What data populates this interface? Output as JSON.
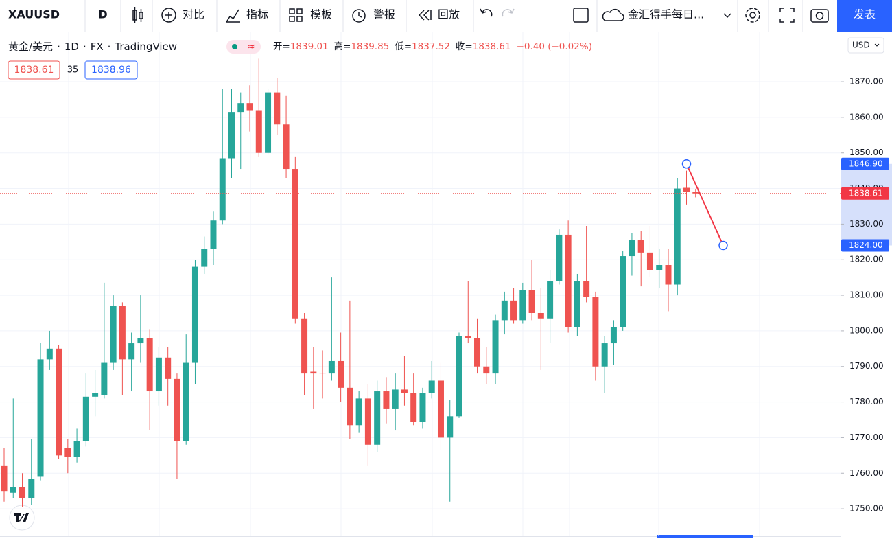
{
  "toolbar": {
    "symbol": "XAUUSD",
    "interval": "D",
    "buttons": [
      "对比",
      "指标",
      "模板",
      "警报",
      "回放"
    ],
    "layout_name": "金汇得手每日...",
    "publish": "发表"
  },
  "legend": {
    "name": "黄金/美元",
    "interval": "1D",
    "exchange": "FX",
    "source": "TradingView",
    "ohlc": [
      {
        "label": "开=",
        "value": 1839.01
      },
      {
        "label": "高=",
        "value": 1839.85
      },
      {
        "label": "低=",
        "value": 1837.52
      },
      {
        "label": "收=",
        "value": 1838.61
      }
    ],
    "change": "−0.40 (−0.02%)",
    "bid": 1838.61,
    "spread": 35,
    "ask": 1838.96
  },
  "currency": "USD",
  "chart_data": {
    "type": "candlestick",
    "open": [
      1762,
      1754.5,
      1756,
      1753,
      1759,
      1792,
      1795,
      1767,
      1764.5,
      1769,
      1781.5,
      1782,
      1791,
      1807,
      1792,
      1796.5,
      1798,
      1783,
      1792.5,
      1786.5,
      1769,
      1791,
      1818,
      1823,
      1831,
      1848.5,
      1861.5,
      1864,
      1862,
      1850,
      1867,
      1858,
      1845.5,
      1803.5,
      1788.5,
      1788.2,
      1788,
      1791.5,
      1784,
      1773.5,
      1781,
      1768,
      1783,
      1778,
      1783.5,
      1782.5,
      1774.5,
      1782.5,
      1786,
      1770,
      1776,
      1798.5,
      1798,
      1790,
      1788,
      1803,
      1808.5,
      1803,
      1811.5,
      1805,
      1803.5,
      1814,
      1827,
      1801,
      1814,
      1809.5,
      1790,
      1796.5,
      1801,
      1821,
      1825.5,
      1822,
      1817,
      1818.5,
      1813,
      1840.2,
      1839.01
    ],
    "high": [
      1767,
      1781,
      1760,
      1769.5,
      1796.5,
      1800,
      1796,
      1769.5,
      1772.5,
      1788,
      1789,
      1813.5,
      1810,
      1808,
      1799.5,
      1810,
      1800.5,
      1795.5,
      1795.5,
      1788,
      1799,
      1820,
      1826.5,
      1833.5,
      1868,
      1868,
      1867,
      1869,
      1876.5,
      1868,
      1871,
      1866,
      1849,
      1805,
      1795.5,
      1794.5,
      1815,
      1799.5,
      1808.5,
      1783,
      1785,
      1786,
      1787,
      1788,
      1793,
      1788,
      1784,
      1791.5,
      1791,
      1780.5,
      1799.5,
      1814,
      1803.5,
      1795.5,
      1804.5,
      1811,
      1812,
      1813.5,
      1820,
      1812,
      1817,
      1828.5,
      1831,
      1816,
      1829.5,
      1811,
      1798.5,
      1803,
      1822.5,
      1827.5,
      1828,
      1829.5,
      1823,
      1823,
      1843,
      1845,
      1839.85
    ],
    "low": [
      1752,
      1753,
      1750.5,
      1751,
      1758,
      1789,
      1764,
      1760,
      1763,
      1767.5,
      1776,
      1781,
      1789,
      1782,
      1783,
      1791,
      1772,
      1779,
      1779,
      1758.5,
      1768,
      1785,
      1816,
      1818.5,
      1830,
      1843,
      1845.5,
      1856,
      1849,
      1849.5,
      1855,
      1843,
      1802,
      1782,
      1778,
      1781,
      1786,
      1780,
      1769.5,
      1771.5,
      1762,
      1766,
      1774,
      1772,
      1779,
      1773.5,
      1772.5,
      1781,
      1766.5,
      1752,
      1775.5,
      1796.5,
      1788,
      1785,
      1785,
      1799,
      1802,
      1802,
      1803,
      1789,
      1796.5,
      1813,
      1799.5,
      1798.5,
      1808,
      1786,
      1782.5,
      1790.5,
      1800,
      1815.5,
      1812.5,
      1815,
      1812,
      1805.5,
      1810,
      1835.5,
      1837.52
    ],
    "close": [
      1755,
      1756,
      1753,
      1758.5,
      1792,
      1795,
      1765,
      1764.5,
      1769,
      1781.5,
      1782.5,
      1791,
      1807,
      1792,
      1796.5,
      1798,
      1783,
      1792.5,
      1786.5,
      1769,
      1791,
      1818,
      1823,
      1831,
      1848.5,
      1861.5,
      1864,
      1862,
      1850,
      1867,
      1858,
      1845.5,
      1803.5,
      1788,
      1788,
      1788,
      1791.5,
      1784,
      1773.5,
      1781,
      1768,
      1783,
      1778,
      1783.5,
      1782.5,
      1774.5,
      1782.5,
      1786,
      1770,
      1776,
      1798.5,
      1798,
      1790,
      1788,
      1803,
      1808.5,
      1803,
      1811.5,
      1805,
      1803.5,
      1814,
      1827,
      1801,
      1814,
      1809.5,
      1790,
      1796.5,
      1801,
      1821,
      1825.5,
      1822,
      1817,
      1818.5,
      1813,
      1840,
      1839.0,
      1838.61
    ],
    "up_color": "#26a69a",
    "down_color": "#ef5350",
    "ylim": [
      1742.3,
      1883.9
    ],
    "yticks": [
      {
        "value": 1750,
        "label": "1750.00"
      },
      {
        "value": 1760,
        "label": "1760.00"
      },
      {
        "value": 1770,
        "label": "1770.00"
      },
      {
        "value": 1780,
        "label": "1780.00"
      },
      {
        "value": 1790,
        "label": "1790.00"
      },
      {
        "value": 1800,
        "label": "1800.00"
      },
      {
        "value": 1810,
        "label": "1810.00"
      },
      {
        "value": 1820,
        "label": "1820.00"
      },
      {
        "value": 1830,
        "label": "1830.00"
      },
      {
        "value": 1840,
        "label": "1840.00"
      },
      {
        "value": 1850,
        "label": "1850.00"
      },
      {
        "value": 1860,
        "label": "1860.00"
      },
      {
        "value": 1870,
        "label": "1870.00"
      }
    ],
    "grid": true,
    "last_price": 1838.61,
    "drawing": {
      "type": "trend-line",
      "color": "#f23645",
      "points": [
        {
          "value": 1846.9,
          "label": "1846.90"
        },
        {
          "value": 1824.0,
          "label": "1824.00"
        }
      ]
    }
  }
}
